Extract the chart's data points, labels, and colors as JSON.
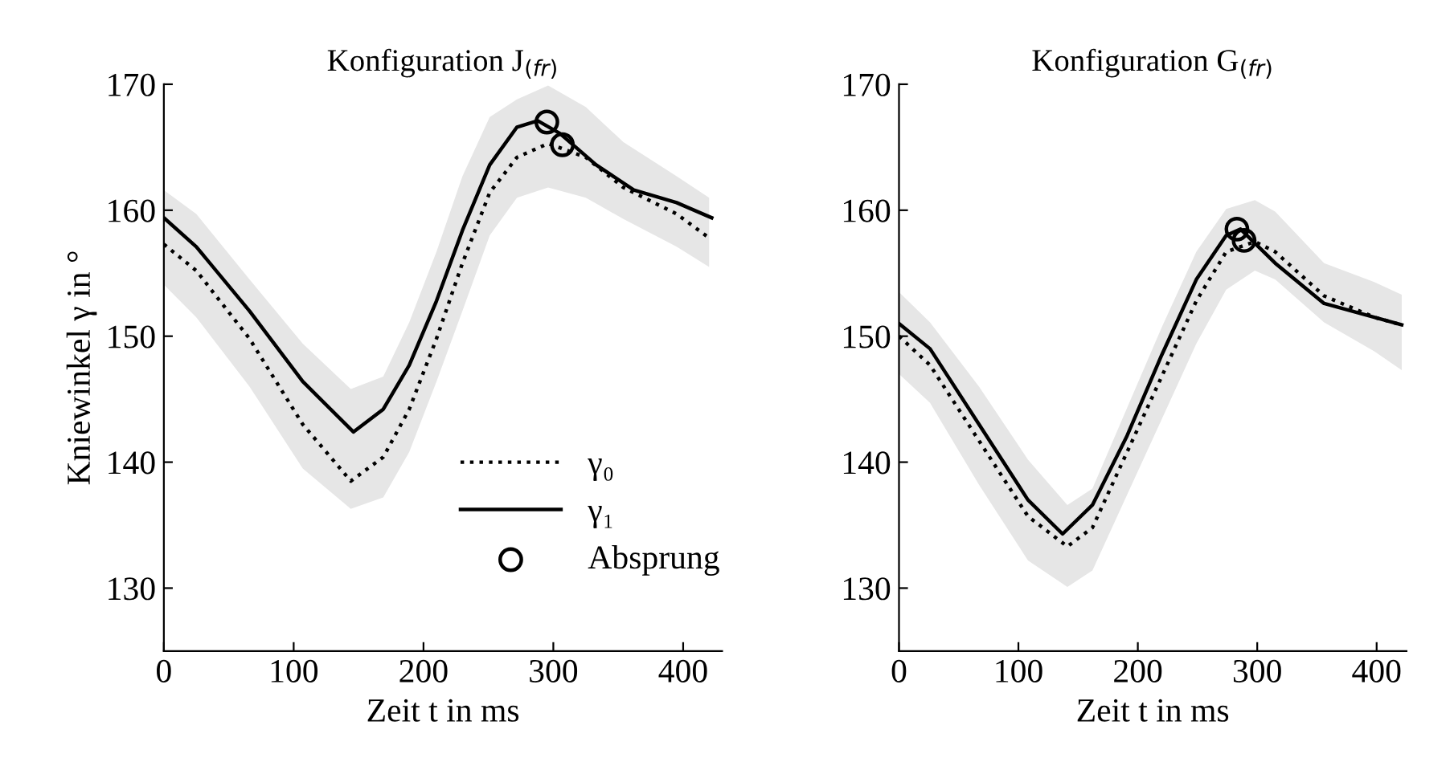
{
  "chart_data": [
    {
      "type": "line",
      "title": "Konfiguration J$_{(fr)}$",
      "xlabel": "Zeit t in ms",
      "ylabel": "Kniewinkel γ in °",
      "xlim": [
        0,
        430
      ],
      "xticks": [
        0,
        100,
        200,
        300,
        400
      ],
      "ylim": [
        125,
        170
      ],
      "yticks": [
        130,
        140,
        150,
        160,
        170
      ],
      "grid": false,
      "legend": "bottom right",
      "series": [
        {
          "name": "γ₀",
          "color": "#000000",
          "line_style": "dotted",
          "x": [
            0,
            25,
            66,
            107,
            144,
            169,
            189,
            210,
            230,
            251,
            272,
            296,
            325,
            354,
            395,
            420
          ],
          "values": [
            157.3,
            155.2,
            149.8,
            143.0,
            138.5,
            140.4,
            144.2,
            149.8,
            155.8,
            161.4,
            164.2,
            165.3,
            164.2,
            161.8,
            159.7,
            157.8
          ],
          "lower": [
            154.1,
            151.5,
            146.0,
            139.5,
            136.3,
            137.2,
            140.8,
            146.4,
            152.0,
            158.0,
            161.0,
            161.8,
            161.0,
            159.3,
            157.1,
            155.5
          ],
          "upper": [
            161.6,
            159.7,
            154.5,
            149.4,
            145.8,
            146.8,
            151.1,
            156.7,
            162.7,
            167.4,
            168.8,
            169.9,
            168.2,
            165.4,
            162.7,
            161.0
          ]
        },
        {
          "name": "γ₁",
          "color": "#000000",
          "line_style": "solid",
          "x": [
            0,
            25,
            66,
            107,
            146,
            169,
            189,
            210,
            230,
            251,
            272,
            288,
            305,
            333,
            362,
            395,
            422
          ],
          "values": [
            159.4,
            157.1,
            152.0,
            146.4,
            142.4,
            144.2,
            147.7,
            152.8,
            158.4,
            163.6,
            166.6,
            167.1,
            166.1,
            163.6,
            161.6,
            160.6,
            159.4
          ]
        },
        {
          "name": "Absprung",
          "type": "scatter",
          "marker": "circle",
          "color": "#000000",
          "x": [
            295,
            307
          ],
          "values": [
            167.0,
            165.2
          ]
        }
      ]
    },
    {
      "type": "line",
      "title": "Konfiguration G$_{(fr)}$",
      "xlabel": "Zeit t in ms",
      "xlim": [
        0,
        425
      ],
      "xticks": [
        0,
        100,
        200,
        300,
        400
      ],
      "ylim": [
        125,
        170
      ],
      "yticks": [
        130,
        140,
        150,
        160,
        170
      ],
      "grid": false,
      "series": [
        {
          "color": "#000000",
          "line_style": "dotted",
          "x": [
            0,
            26,
            67,
            108,
            141,
            162,
            191,
            220,
            249,
            274,
            298,
            315,
            356,
            398,
            421
          ],
          "values": [
            150.0,
            147.7,
            141.7,
            135.7,
            133.3,
            134.8,
            140.8,
            146.8,
            152.8,
            156.7,
            157.5,
            156.7,
            153.2,
            151.5,
            150.9
          ],
          "lower": [
            147.0,
            144.7,
            138.2,
            132.2,
            130.1,
            131.4,
            137.4,
            143.4,
            149.4,
            153.7,
            155.2,
            154.5,
            151.1,
            148.8,
            147.3
          ],
          "upper": [
            153.5,
            151.1,
            146.0,
            140.2,
            136.6,
            137.9,
            144.3,
            150.7,
            156.7,
            160.1,
            160.8,
            159.9,
            155.8,
            154.3,
            153.3
          ]
        },
        {
          "color": "#000000",
          "line_style": "solid",
          "x": [
            0,
            26,
            67,
            108,
            137,
            162,
            191,
            220,
            249,
            274,
            286,
            315,
            356,
            398,
            421
          ],
          "values": [
            151.0,
            149.0,
            143.0,
            137.0,
            134.3,
            136.6,
            142.1,
            148.5,
            154.5,
            158.0,
            158.5,
            155.8,
            152.6,
            151.5,
            150.9
          ]
        },
        {
          "type": "scatter",
          "marker": "circle",
          "color": "#000000",
          "x": [
            283,
            289
          ],
          "values": [
            158.5,
            157.6
          ]
        }
      ]
    }
  ]
}
